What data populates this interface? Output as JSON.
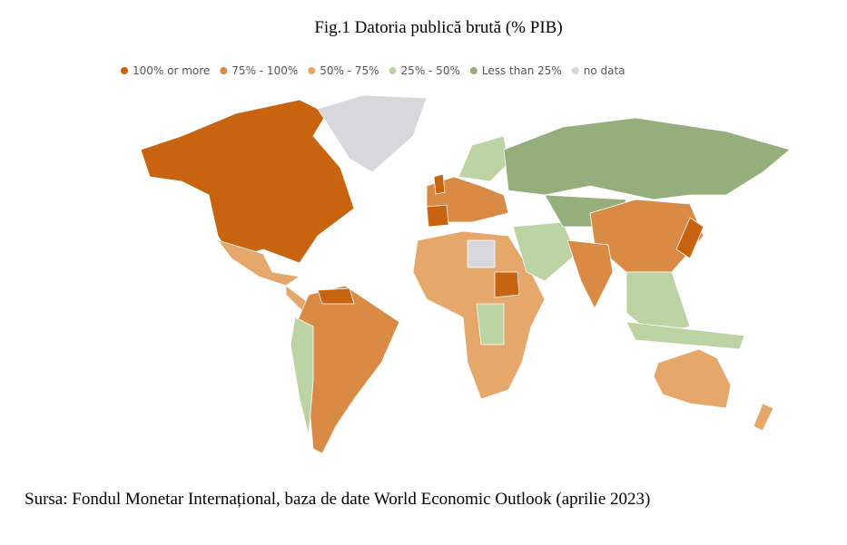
{
  "title": "Fig.1 Datoria publică brută (% PIB)",
  "legend": [
    {
      "label": "100% or more",
      "color": "#c8640f"
    },
    {
      "label": "75% - 100%",
      "color": "#d98a45"
    },
    {
      "label": "50% - 75%",
      "color": "#e6a76a"
    },
    {
      "label": "25% - 50%",
      "color": "#bcd3a3"
    },
    {
      "label": "Less than 25%",
      "color": "#95ae7b"
    },
    {
      "label": "no data",
      "color": "#d8d8dc"
    }
  ],
  "source": "Sursa: Fondul Monetar Internațional, baza de date World Economic Outlook (aprilie 2023)"
}
